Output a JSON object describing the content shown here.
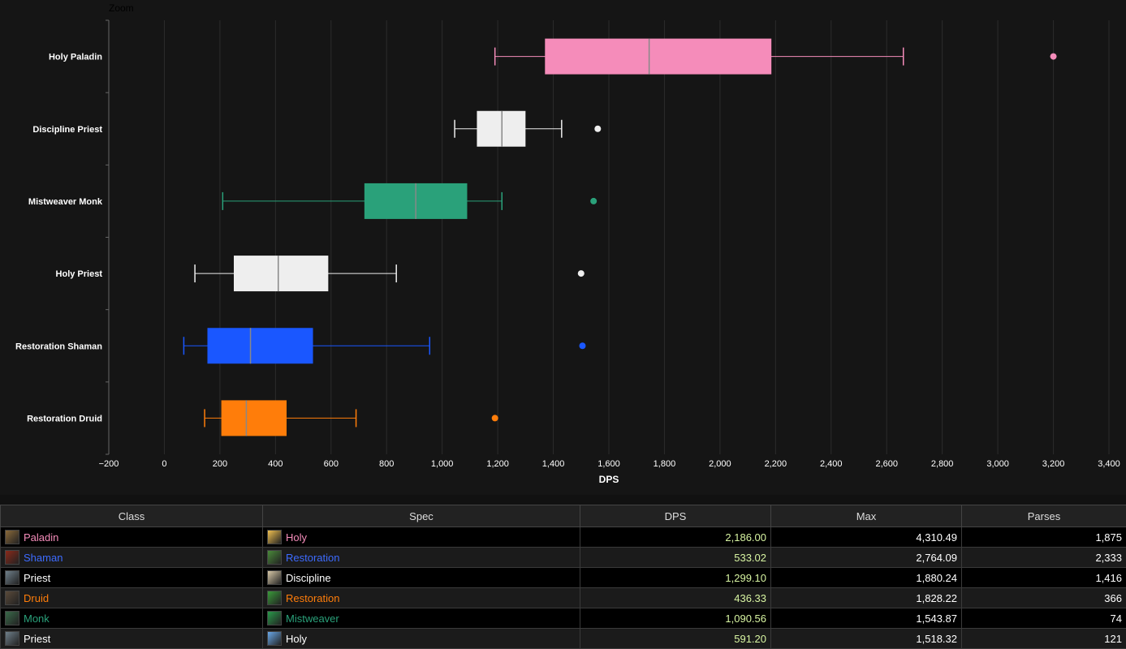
{
  "chart_data": {
    "type": "boxplot",
    "title_button": "Zoom",
    "xlabel": "DPS",
    "xlim": [
      -200,
      3400
    ],
    "xticks": [
      -200,
      0,
      200,
      400,
      600,
      800,
      1000,
      1200,
      1400,
      1600,
      1800,
      2000,
      2200,
      2400,
      2600,
      2800,
      3000,
      3200,
      3400
    ],
    "xtick_labels": [
      "−200",
      "0",
      "200",
      "400",
      "600",
      "800",
      "1,000",
      "1,200",
      "1,400",
      "1,600",
      "1,800",
      "2,000",
      "2,200",
      "2,400",
      "2,600",
      "2,800",
      "3,000",
      "3,200",
      "3,400"
    ],
    "orientation": "horizontal",
    "grid": true,
    "series": [
      {
        "name": "Holy Paladin",
        "color": "#f58cba",
        "whisker_low": 1190,
        "q1": 1370,
        "median": 1745,
        "q3": 2185,
        "whisker_high": 2660,
        "outlier": 3200
      },
      {
        "name": "Discipline Priest",
        "color": "#eeeeee",
        "whisker_low": 1045,
        "q1": 1125,
        "median": 1215,
        "q3": 1300,
        "whisker_high": 1430,
        "outlier": 1560
      },
      {
        "name": "Mistweaver Monk",
        "color": "#2aa17a",
        "whisker_low": 210,
        "q1": 720,
        "median": 905,
        "q3": 1090,
        "whisker_high": 1215,
        "outlier": 1545
      },
      {
        "name": "Holy Priest",
        "color": "#eeeeee",
        "whisker_low": 110,
        "q1": 250,
        "median": 410,
        "q3": 590,
        "whisker_high": 835,
        "outlier": 1500
      },
      {
        "name": "Restoration Shaman",
        "color": "#1a57ff",
        "whisker_low": 70,
        "q1": 155,
        "median": 310,
        "q3": 535,
        "whisker_high": 955,
        "outlier": 1505
      },
      {
        "name": "Restoration Druid",
        "color": "#ff7d0a",
        "whisker_low": 145,
        "q1": 205,
        "median": 295,
        "q3": 440,
        "whisker_high": 690,
        "outlier": 1190
      }
    ]
  },
  "table": {
    "headers": [
      "Class",
      "Spec",
      "DPS",
      "Max",
      "Parses"
    ],
    "rows": [
      {
        "class": "Paladin",
        "class_color": "#f58cba",
        "class_icon": "paladin-icon",
        "spec": "Holy",
        "spec_color": "#f58cba",
        "spec_icon": "holy-light-icon",
        "dps": "2,186.00",
        "max": "4,310.49",
        "parses": "1,875"
      },
      {
        "class": "Shaman",
        "class_color": "#3d6bff",
        "class_icon": "shaman-icon",
        "spec": "Restoration",
        "spec_color": "#3d6bff",
        "spec_icon": "restoration-shaman-icon",
        "dps": "533.02",
        "max": "2,764.09",
        "parses": "2,333"
      },
      {
        "class": "Priest",
        "class_color": "#ffffff",
        "class_icon": "priest-icon",
        "spec": "Discipline",
        "spec_color": "#ffffff",
        "spec_icon": "discipline-icon",
        "dps": "1,299.10",
        "max": "1,880.24",
        "parses": "1,416"
      },
      {
        "class": "Druid",
        "class_color": "#ff7d0a",
        "class_icon": "druid-icon",
        "spec": "Restoration",
        "spec_color": "#ff7d0a",
        "spec_icon": "restoration-druid-icon",
        "dps": "436.33",
        "max": "1,828.22",
        "parses": "366"
      },
      {
        "class": "Monk",
        "class_color": "#2aa17a",
        "class_icon": "monk-icon",
        "spec": "Mistweaver",
        "spec_color": "#2aa17a",
        "spec_icon": "mistweaver-icon",
        "dps": "1,090.56",
        "max": "1,543.87",
        "parses": "74"
      },
      {
        "class": "Priest",
        "class_color": "#ffffff",
        "class_icon": "priest-icon",
        "spec": "Holy",
        "spec_color": "#ffffff",
        "spec_icon": "holy-priest-icon",
        "dps": "591.20",
        "max": "1,518.32",
        "parses": "121"
      }
    ]
  },
  "icon_colors": {
    "paladin-icon": "#8a6a3a",
    "shaman-icon": "#8a2a1a",
    "priest-icon": "#6f7f8a",
    "druid-icon": "#5a4a3a",
    "monk-icon": "#3a6a4a",
    "holy-light-icon": "#f0c050",
    "restoration-shaman-icon": "#4a8a3a",
    "discipline-icon": "#d8c8a8",
    "restoration-druid-icon": "#3a9a3a",
    "mistweaver-icon": "#2a9a4a",
    "holy-priest-icon": "#6aa8e8"
  }
}
